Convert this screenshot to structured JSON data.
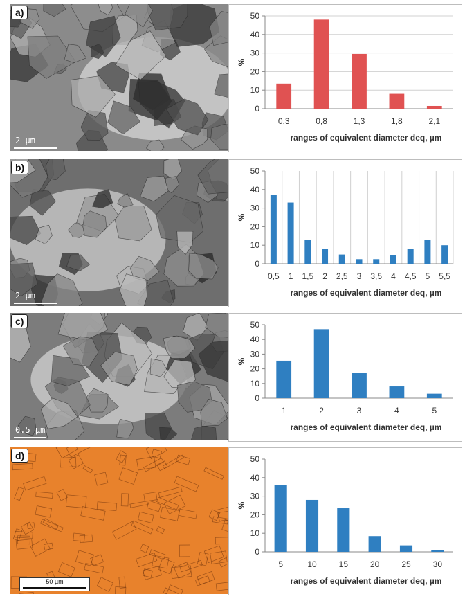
{
  "chart_data": [
    {
      "panel_label": "a)",
      "type": "bar",
      "color": "#e05252",
      "categories": [
        "0,3",
        "0,8",
        "1,3",
        "1,8",
        "2,1"
      ],
      "values": [
        13.5,
        48,
        29.5,
        8,
        1.5
      ],
      "ylabel": "%",
      "xlabel": "ranges of equivalent diameter deq, µm",
      "ylim": [
        0,
        50
      ],
      "yticks": [
        "0",
        "10",
        "20",
        "30",
        "40",
        "50"
      ],
      "grid": "horizontal",
      "image_scale_label": "2 µm"
    },
    {
      "panel_label": "b)",
      "type": "bar",
      "color": "#2f7fc1",
      "categories": [
        "0,5",
        "1",
        "1,5",
        "2",
        "2,5",
        "3",
        "3,5",
        "4",
        "4,5",
        "5",
        "5,5"
      ],
      "values": [
        37,
        33,
        13,
        8,
        5,
        2.5,
        2.5,
        4.5,
        8,
        13,
        10
      ],
      "ylabel": "%",
      "xlabel": "ranges of equivalent diameter deq, µm",
      "ylim": [
        0,
        50
      ],
      "yticks": [
        "0",
        "10",
        "20",
        "30",
        "40",
        "50"
      ],
      "grid": "vertical",
      "image_scale_label": "2 µm"
    },
    {
      "panel_label": "c)",
      "type": "bar",
      "color": "#2f7fc1",
      "categories": [
        "1",
        "2",
        "3",
        "4",
        "5"
      ],
      "values": [
        25.5,
        47,
        17,
        8,
        3
      ],
      "ylabel": "%",
      "xlabel": "ranges of equivalent diameter deq, µm",
      "ylim": [
        0,
        50
      ],
      "yticks": [
        "0",
        "10",
        "20",
        "30",
        "40",
        "50"
      ],
      "grid": "none",
      "image_scale_label": "0.5 µm"
    },
    {
      "panel_label": "d)",
      "type": "bar",
      "color": "#2f7fc1",
      "categories": [
        "5",
        "10",
        "15",
        "20",
        "25",
        "30"
      ],
      "values": [
        36,
        28,
        23.5,
        8.5,
        3.5,
        1
      ],
      "ylabel": "%",
      "xlabel": "ranges of equivalent diameter deq, µm",
      "ylim": [
        0,
        50
      ],
      "yticks": [
        "0",
        "10",
        "20",
        "30",
        "40",
        "50"
      ],
      "grid": "none",
      "image_scale_label": "50 µm"
    }
  ],
  "images": [
    {
      "kind": "tem-micrograph",
      "base": "#8a8a8a"
    },
    {
      "kind": "tem-micrograph",
      "base": "#6e6e6e"
    },
    {
      "kind": "tem-micrograph",
      "base": "#7c7c7c"
    },
    {
      "kind": "optical-micrograph",
      "base": "#e8822c"
    }
  ]
}
